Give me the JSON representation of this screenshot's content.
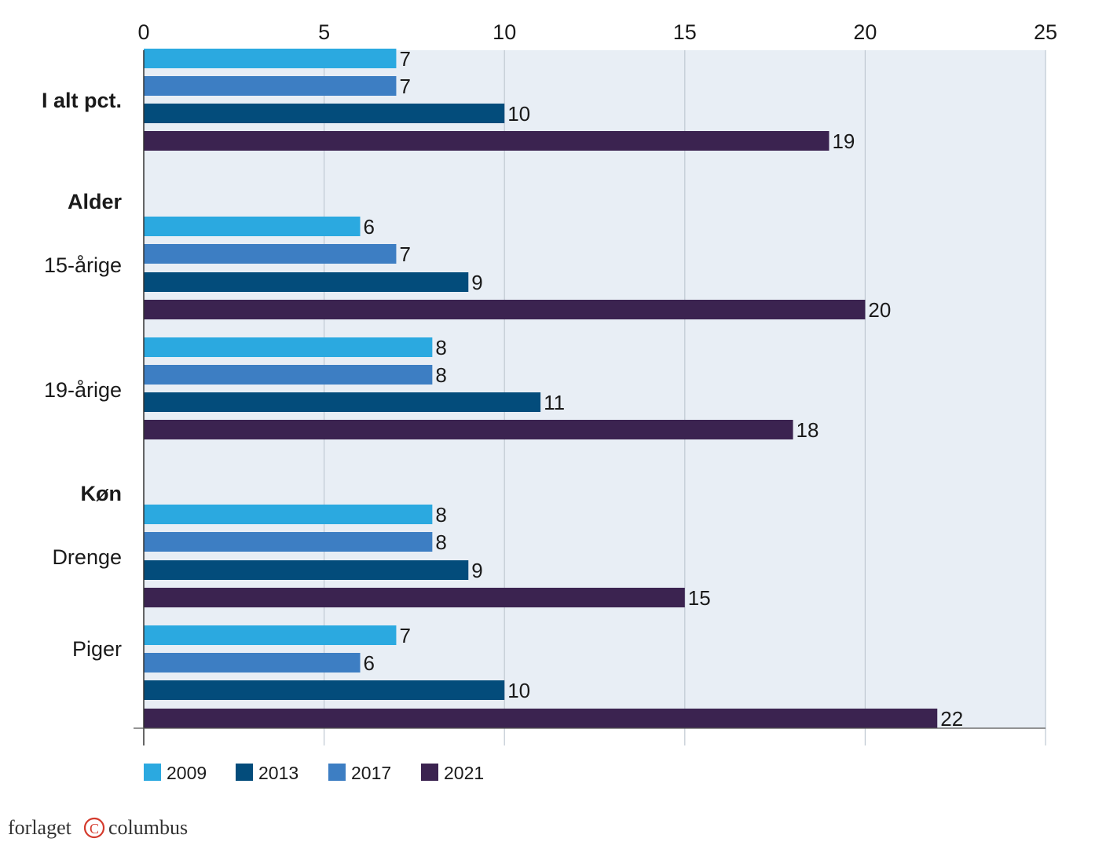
{
  "chart_data": {
    "type": "bar",
    "orientation": "horizontal",
    "xlim": [
      0,
      25
    ],
    "x_ticks": [
      "0",
      "5",
      "10",
      "15",
      "20",
      "25"
    ],
    "grid": true,
    "legend_position": "bottom-left",
    "groups": [
      {
        "label": "I alt pct.",
        "header": true,
        "values": [
          7,
          7,
          10,
          19
        ],
        "value_labels": [
          "7",
          "7",
          "10",
          "19"
        ]
      },
      {
        "label": "Alder",
        "header": true,
        "values": null
      },
      {
        "label": "15-årige",
        "header": false,
        "values": [
          6,
          7,
          9,
          20
        ],
        "value_labels": [
          "6",
          "7",
          "9",
          "20"
        ]
      },
      {
        "label": "19-årige",
        "header": false,
        "values": [
          8,
          8,
          11,
          18
        ],
        "value_labels": [
          "8",
          "8",
          "11",
          "18"
        ]
      },
      {
        "label": "Køn",
        "header": true,
        "values": null
      },
      {
        "label": "Drenge",
        "header": false,
        "values": [
          8,
          8,
          9,
          15
        ],
        "value_labels": [
          "8",
          "8",
          "9",
          "15"
        ]
      },
      {
        "label": "Piger",
        "header": false,
        "values": [
          7,
          6,
          10,
          22
        ],
        "value_labels": [
          "7",
          "6",
          "10",
          "22"
        ]
      }
    ],
    "series": [
      {
        "name": "2009",
        "color": "#2ba9e0"
      },
      {
        "name": "2017",
        "color": "#3d7ec3"
      },
      {
        "name": "2013",
        "color": "#034c7b"
      },
      {
        "name": "2021",
        "color": "#3b2350"
      }
    ],
    "legend": [
      {
        "name": "2009",
        "color": "#2ba9e0"
      },
      {
        "name": "2013",
        "color": "#034c7b"
      },
      {
        "name": "2017",
        "color": "#3d7ec3"
      },
      {
        "name": "2021",
        "color": "#3b2350"
      }
    ],
    "plot_background": "#e8eef5"
  },
  "brand": {
    "left": "forlaget",
    "symbol": "C",
    "right": "columbus"
  }
}
